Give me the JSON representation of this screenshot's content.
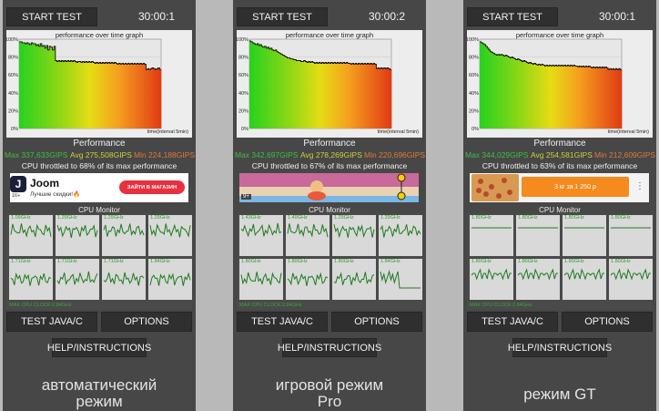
{
  "start_label": "START TEST",
  "test_java_label": "TEST JAVA/C",
  "options_label": "OPTIONS",
  "help_label": "HELP/INSTRUCTIONS",
  "graph_title": "performance over time graph",
  "graph_interval": "time(interval 5min)",
  "perf_label": "Performance",
  "cpu_monitor_label": "CPU Monitor",
  "max_cpu_clock": "MAX CPU CLOCK:2.84GHz",
  "y_ticks": [
    "100%",
    "80%",
    "60%",
    "40%",
    "20%",
    "0%"
  ],
  "colors": {
    "max": "#3fbf3f",
    "avg": "#c9d23a",
    "min": "#e0783a",
    "bg": "#474747"
  },
  "panels": [
    {
      "timer": "30:00:1",
      "max": "Max 337,633GIPS",
      "avg": "Avg 275,508GIPS",
      "min": "Min 224,188GIPS",
      "throttle": "CPU throttled to 68% of its max performance",
      "caption_line1": "автоматический",
      "caption_line2": "режим",
      "freqs": [
        "1.09GHz",
        "1.29GHz",
        "1.29GHz",
        "1.29GHz",
        "1.71GHz",
        "1.71GHz",
        "1.71GHz",
        "1.84GHz"
      ],
      "ad": {
        "type": "joom",
        "brand": "Joom",
        "tagline": "Лучшие скидки!🔥",
        "badge": "16+",
        "cta": "ЗАЙТИ В МАГАЗИН"
      },
      "chart_data": {
        "type": "area",
        "ylim": [
          0,
          100
        ],
        "xlabel": "time(interval 5min)",
        "ylabel": "",
        "values": [
          97,
          97,
          96,
          96,
          95,
          96,
          95,
          94,
          96,
          95,
          95,
          93,
          94,
          92,
          95,
          92,
          93,
          90,
          93,
          88,
          92,
          91,
          88,
          92,
          76,
          75,
          76,
          75,
          76,
          75,
          76,
          75,
          76,
          75,
          76,
          75,
          76,
          75,
          74,
          75,
          75,
          74,
          75,
          74,
          75,
          74,
          75,
          74,
          75,
          74,
          73,
          74,
          73,
          74,
          73,
          74,
          73,
          74,
          73,
          74,
          73,
          74,
          73,
          74,
          73,
          72,
          73,
          72,
          73,
          72,
          73,
          72,
          73,
          72,
          73,
          72,
          73,
          72,
          73,
          72,
          73,
          72,
          73,
          72,
          66,
          67,
          66,
          67,
          68,
          67,
          66,
          67,
          68,
          66
        ]
      }
    },
    {
      "timer": "30:00:2",
      "max": "Max 342,697GIPS",
      "avg": "Avg 278,269GIPS",
      "min": "Min 220,696GIPS",
      "throttle": "CPU throttled to 67% of its max performance",
      "caption_line1": "игровой режим",
      "caption_line2": "Pro",
      "freqs": [
        "1.43GHz",
        "1.49GHz",
        "1.29GHz",
        "1.29GHz",
        "1.80GHz",
        "1.80GHz",
        "1.80GHz",
        "1.84GHz"
      ],
      "ad": {
        "type": "game",
        "badge": "9+"
      },
      "chart_data": {
        "type": "area",
        "ylim": [
          0,
          100
        ],
        "xlabel": "time(interval 5min)",
        "ylabel": "",
        "values": [
          98,
          97,
          96,
          95,
          94,
          95,
          93,
          94,
          92,
          91,
          92,
          90,
          91,
          89,
          90,
          88,
          87,
          88,
          86,
          85,
          84,
          83,
          82,
          81,
          80,
          79,
          79,
          78,
          78,
          77,
          77,
          76,
          76,
          76,
          75,
          75,
          76,
          75,
          74,
          75,
          74,
          75,
          74,
          73,
          74,
          73,
          74,
          73,
          74,
          73,
          74,
          73,
          74,
          73,
          74,
          73,
          74,
          73,
          74,
          73,
          74,
          73,
          74,
          73,
          74,
          73,
          73,
          72,
          73,
          72,
          73,
          72,
          73,
          72,
          73,
          72,
          73,
          72,
          73,
          72,
          73,
          72,
          73,
          72,
          67,
          68,
          67,
          68,
          67,
          68,
          67,
          68,
          67,
          66
        ]
      }
    },
    {
      "timer": "30:00:1",
      "max": "Max 344,029GIPS",
      "avg": "Avg 254,581GIPS",
      "min": "Min 212,609GIPS",
      "throttle": "CPU throttled to 63% of its max performance",
      "caption_line1": "режим GT",
      "caption_line2": "",
      "freqs": [
        "1.80GHz",
        "1.80GHz",
        "1.80GHz",
        "1.80GHz",
        "1.80GHz",
        "1.80GHz",
        "1.80GHz",
        "1.80GHz"
      ],
      "ad": {
        "type": "pizza",
        "text": "3 кг за 1 250 р"
      },
      "chart_data": {
        "type": "area",
        "ylim": [
          0,
          100
        ],
        "xlabel": "time(interval 5min)",
        "ylabel": "",
        "values": [
          97,
          96,
          95,
          94,
          92,
          90,
          88,
          86,
          85,
          84,
          83,
          82,
          83,
          82,
          83,
          82,
          81,
          82,
          81,
          80,
          79,
          80,
          79,
          78,
          77,
          78,
          77,
          76,
          75,
          76,
          75,
          74,
          73,
          74,
          73,
          72,
          73,
          72,
          71,
          72,
          71,
          72,
          71,
          70,
          71,
          70,
          71,
          70,
          71,
          70,
          71,
          70,
          71,
          70,
          71,
          70,
          71,
          70,
          71,
          70,
          71,
          70,
          71,
          70,
          70,
          69,
          70,
          69,
          70,
          69,
          70,
          69,
          70,
          69,
          68,
          69,
          68,
          69,
          68,
          69,
          68,
          69,
          68,
          69,
          68,
          66,
          67,
          66,
          67,
          66,
          67,
          66,
          67,
          66
        ]
      }
    }
  ]
}
